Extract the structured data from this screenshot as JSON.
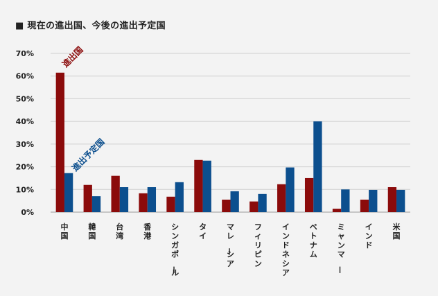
{
  "chart_data": {
    "type": "bar",
    "title": "■ 現在の進出国、今後の進出予定国",
    "xlabel": "",
    "ylabel": "",
    "ylim": [
      0,
      70
    ],
    "yticks": [
      "0%",
      "10%",
      "20%",
      "30%",
      "40%",
      "50%",
      "60%",
      "70%"
    ],
    "grid": true,
    "categories": [
      "中国",
      "韓国",
      "台湾",
      "香港",
      "シンガポール",
      "タイ",
      "マレーシア",
      "フィリピン",
      "インドネシア",
      "ベトナム",
      "ミャンマー",
      "インド",
      "米国"
    ],
    "series": [
      {
        "name": "進出国",
        "color": "#8b0b0b",
        "values": [
          61.5,
          12,
          16,
          8.3,
          6.8,
          23,
          5.5,
          4.7,
          12.3,
          15,
          1.5,
          5.5,
          11
        ]
      },
      {
        "name": "進出予定国",
        "color": "#0c4f8e",
        "values": [
          17.2,
          7,
          11,
          11,
          13.2,
          22.7,
          9.2,
          8,
          19.7,
          40,
          10,
          9.8,
          9.8
        ]
      }
    ]
  }
}
